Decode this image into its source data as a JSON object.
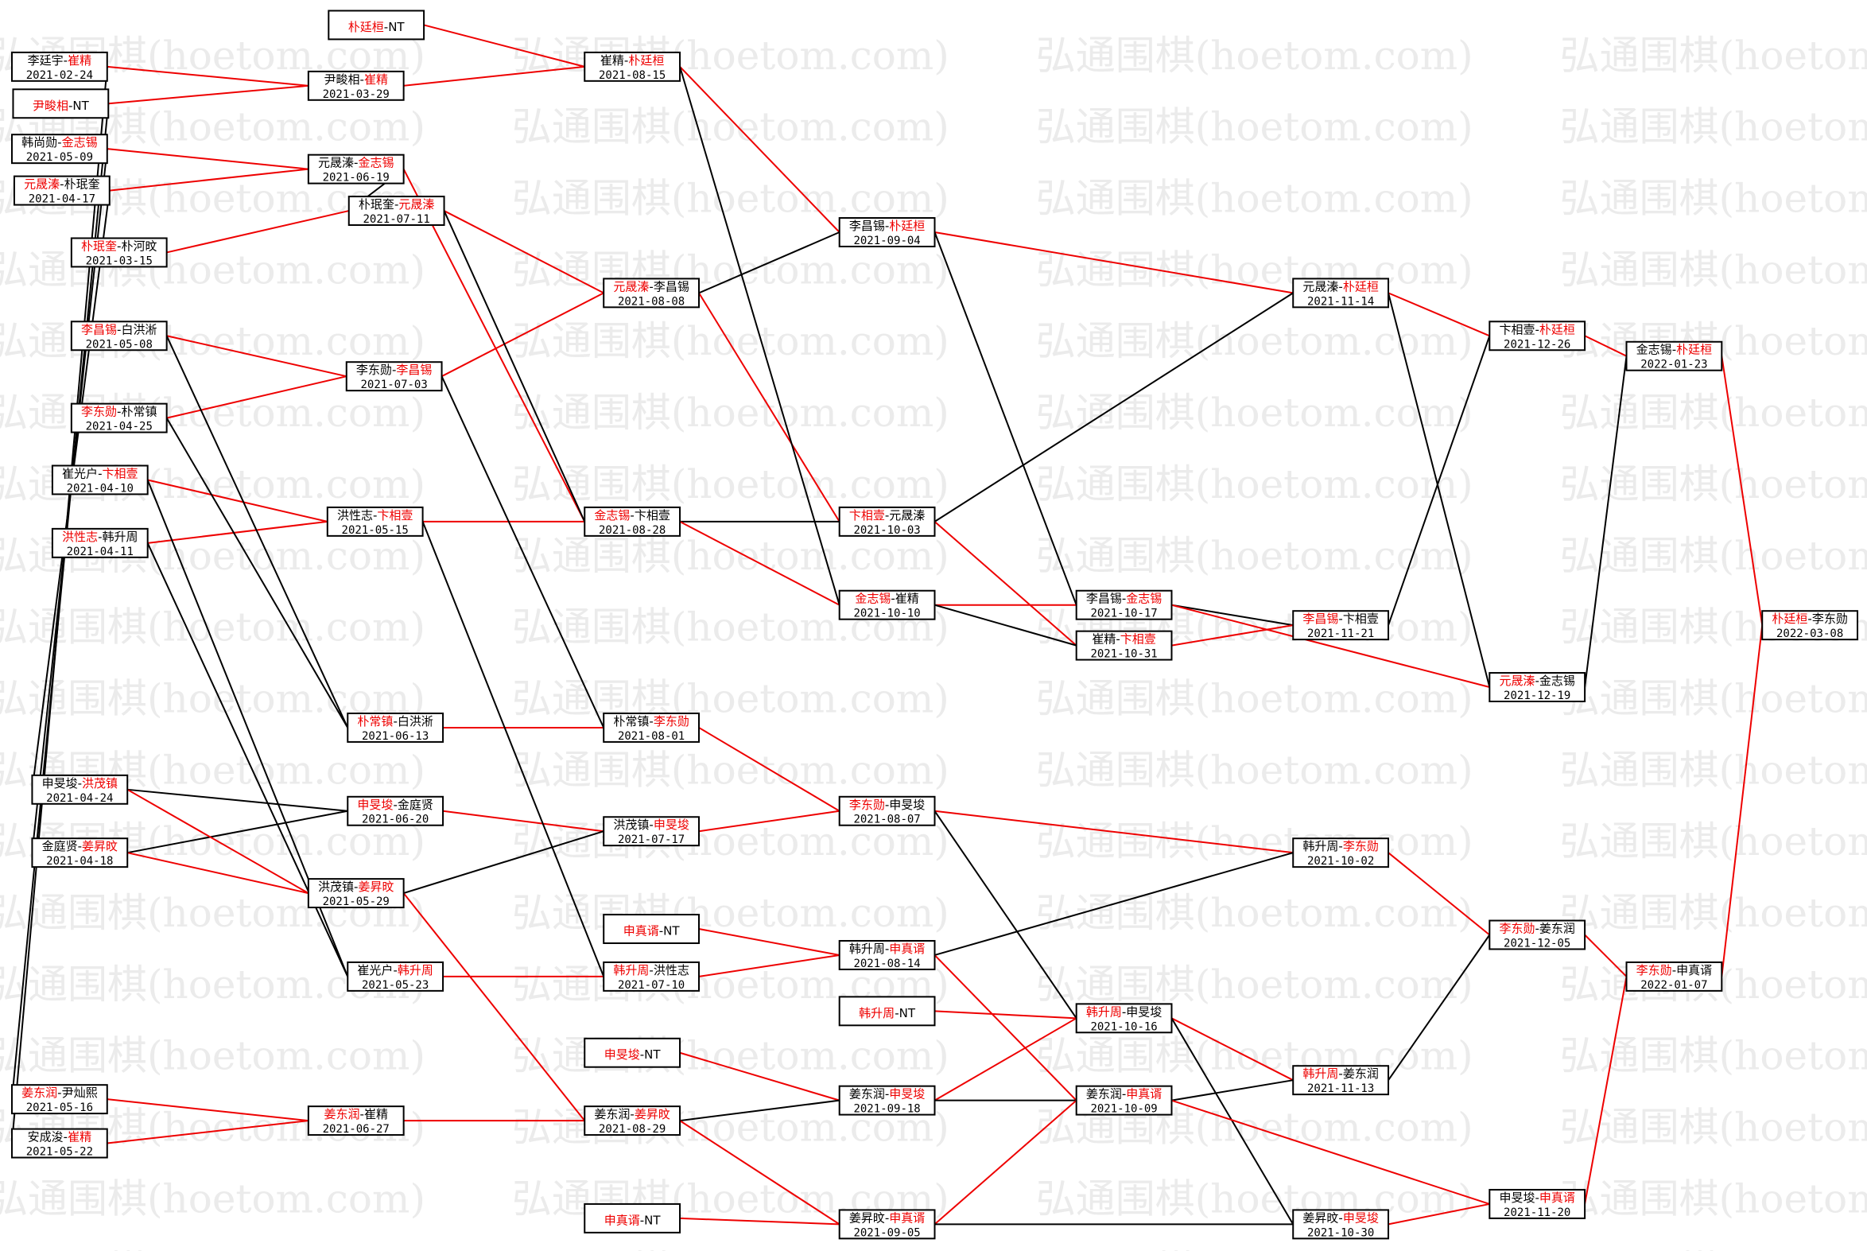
{
  "watermark": "弘通围棋(hoetom.com)",
  "separator": "-",
  "nodes": [
    {
      "p1": "李廷宇",
      "p2": "崔精",
      "date": "2021-02-24",
      "red": 2
    },
    {
      "p1": "尹畯相",
      "p2": "NT",
      "red": 1
    },
    {
      "p1": "韩尚勋",
      "p2": "金志锡",
      "date": "2021-05-09",
      "red": 2
    },
    {
      "p1": "元晟溱",
      "p2": "朴珉奎",
      "date": "2021-04-17",
      "red": 1
    },
    {
      "p1": "朴珉奎",
      "p2": "朴河旼",
      "date": "2021-03-15",
      "red": 1
    },
    {
      "p1": "李昌锡",
      "p2": "白洪淅",
      "date": "2021-05-08",
      "red": 1
    },
    {
      "p1": "李东勋",
      "p2": "朴常镇",
      "date": "2021-04-25",
      "red": 1
    },
    {
      "p1": "崔光户",
      "p2": "卞相壹",
      "date": "2021-04-10",
      "red": 2
    },
    {
      "p1": "洪性志",
      "p2": "韩升周",
      "date": "2021-04-11",
      "red": 1
    },
    {
      "p1": "申旻埈",
      "p2": "洪茂镇",
      "date": "2021-04-24",
      "red": 2
    },
    {
      "p1": "金庭贤",
      "p2": "姜昇旼",
      "date": "2021-04-18",
      "red": 2
    },
    {
      "p1": "姜东润",
      "p2": "尹灿熙",
      "date": "2021-05-16",
      "red": 1
    },
    {
      "p1": "安成浚",
      "p2": "崔精",
      "date": "2021-05-22",
      "red": 2
    },
    {
      "p1": "朴廷桓",
      "p2": "NT",
      "red": 1
    },
    {
      "p1": "尹畯相",
      "p2": "崔精",
      "date": "2021-03-29",
      "red": 2
    },
    {
      "p1": "元晟溱",
      "p2": "金志锡",
      "date": "2021-06-19",
      "red": 2
    },
    {
      "p1": "朴珉奎",
      "p2": "元晟溱",
      "date": "2021-07-11",
      "red": 2
    },
    {
      "p1": "李东勋",
      "p2": "李昌锡",
      "date": "2021-07-03",
      "red": 2
    },
    {
      "p1": "洪性志",
      "p2": "卞相壹",
      "date": "2021-05-15",
      "red": 2
    },
    {
      "p1": "朴常镇",
      "p2": "白洪淅",
      "date": "2021-06-13",
      "red": 1
    },
    {
      "p1": "申旻埈",
      "p2": "金庭贤",
      "date": "2021-06-20",
      "red": 1
    },
    {
      "p1": "洪茂镇",
      "p2": "姜昇旼",
      "date": "2021-05-29",
      "red": 2
    },
    {
      "p1": "崔光户",
      "p2": "韩升周",
      "date": "2021-05-23",
      "red": 2
    },
    {
      "p1": "姜东润",
      "p2": "崔精",
      "date": "2021-06-27",
      "red": 1
    },
    {
      "p1": "崔精",
      "p2": "朴廷桓",
      "date": "2021-08-15",
      "red": 2
    },
    {
      "p1": "元晟溱",
      "p2": "李昌锡",
      "date": "2021-08-08",
      "red": 1
    },
    {
      "p1": "金志锡",
      "p2": "卞相壹",
      "date": "2021-08-28",
      "red": 1
    },
    {
      "p1": "朴常镇",
      "p2": "李东勋",
      "date": "2021-08-01",
      "red": 2
    },
    {
      "p1": "洪茂镇",
      "p2": "申旻埈",
      "date": "2021-07-17",
      "red": 2
    },
    {
      "p1": "申真谞",
      "p2": "NT",
      "red": 1
    },
    {
      "p1": "韩升周",
      "p2": "洪性志",
      "date": "2021-07-10",
      "red": 1
    },
    {
      "p1": "申旻埈",
      "p2": "NT",
      "red": 1
    },
    {
      "p1": "姜东润",
      "p2": "姜昇旼",
      "date": "2021-08-29",
      "red": 2
    },
    {
      "p1": "申真谞",
      "p2": "NT",
      "red": 1
    },
    {
      "p1": "李昌锡",
      "p2": "朴廷桓",
      "date": "2021-09-04",
      "red": 2
    },
    {
      "p1": "卞相壹",
      "p2": "元晟溱",
      "date": "2021-10-03",
      "red": 1
    },
    {
      "p1": "金志锡",
      "p2": "崔精",
      "date": "2021-10-10",
      "red": 1
    },
    {
      "p1": "李东勋",
      "p2": "申旻埈",
      "date": "2021-08-07",
      "red": 1
    },
    {
      "p1": "韩升周",
      "p2": "申真谞",
      "date": "2021-08-14",
      "red": 2
    },
    {
      "p1": "韩升周",
      "p2": "NT",
      "red": 1
    },
    {
      "p1": "姜东润",
      "p2": "申旻埈",
      "date": "2021-09-18",
      "red": 2
    },
    {
      "p1": "姜昇旼",
      "p2": "申真谞",
      "date": "2021-09-05",
      "red": 2
    },
    {
      "p1": "李昌锡",
      "p2": "金志锡",
      "date": "2021-10-17",
      "red": 2
    },
    {
      "p1": "崔精",
      "p2": "卞相壹",
      "date": "2021-10-31",
      "red": 2
    },
    {
      "p1": "韩升周",
      "p2": "申旻埈",
      "date": "2021-10-16",
      "red": 1
    },
    {
      "p1": "姜东润",
      "p2": "申真谞",
      "date": "2021-10-09",
      "red": 2
    },
    {
      "p1": "元晟溱",
      "p2": "朴廷桓",
      "date": "2021-11-14",
      "red": 2
    },
    {
      "p1": "李昌锡",
      "p2": "卞相壹",
      "date": "2021-11-21",
      "red": 1
    },
    {
      "p1": "韩升周",
      "p2": "李东勋",
      "date": "2021-10-02",
      "red": 2
    },
    {
      "p1": "韩升周",
      "p2": "姜东润",
      "date": "2021-11-13",
      "red": 1
    },
    {
      "p1": "姜昇旼",
      "p2": "申旻埈",
      "date": "2021-10-30",
      "red": 2
    },
    {
      "p1": "卞相壹",
      "p2": "朴廷桓",
      "date": "2021-12-26",
      "red": 2
    },
    {
      "p1": "元晟溱",
      "p2": "金志锡",
      "date": "2021-12-19",
      "red": 1
    },
    {
      "p1": "李东勋",
      "p2": "姜东润",
      "date": "2021-12-05",
      "red": 1
    },
    {
      "p1": "申旻埈",
      "p2": "申真谞",
      "date": "2021-11-20",
      "red": 2
    },
    {
      "p1": "金志锡",
      "p2": "朴廷桓",
      "date": "2022-01-23",
      "red": 2
    },
    {
      "p1": "李东勋",
      "p2": "申真谞",
      "date": "2022-01-07",
      "red": 1
    },
    {
      "p1": "朴廷桓",
      "p2": "李东勋",
      "date": "2022-03-08",
      "red": 1
    }
  ]
}
